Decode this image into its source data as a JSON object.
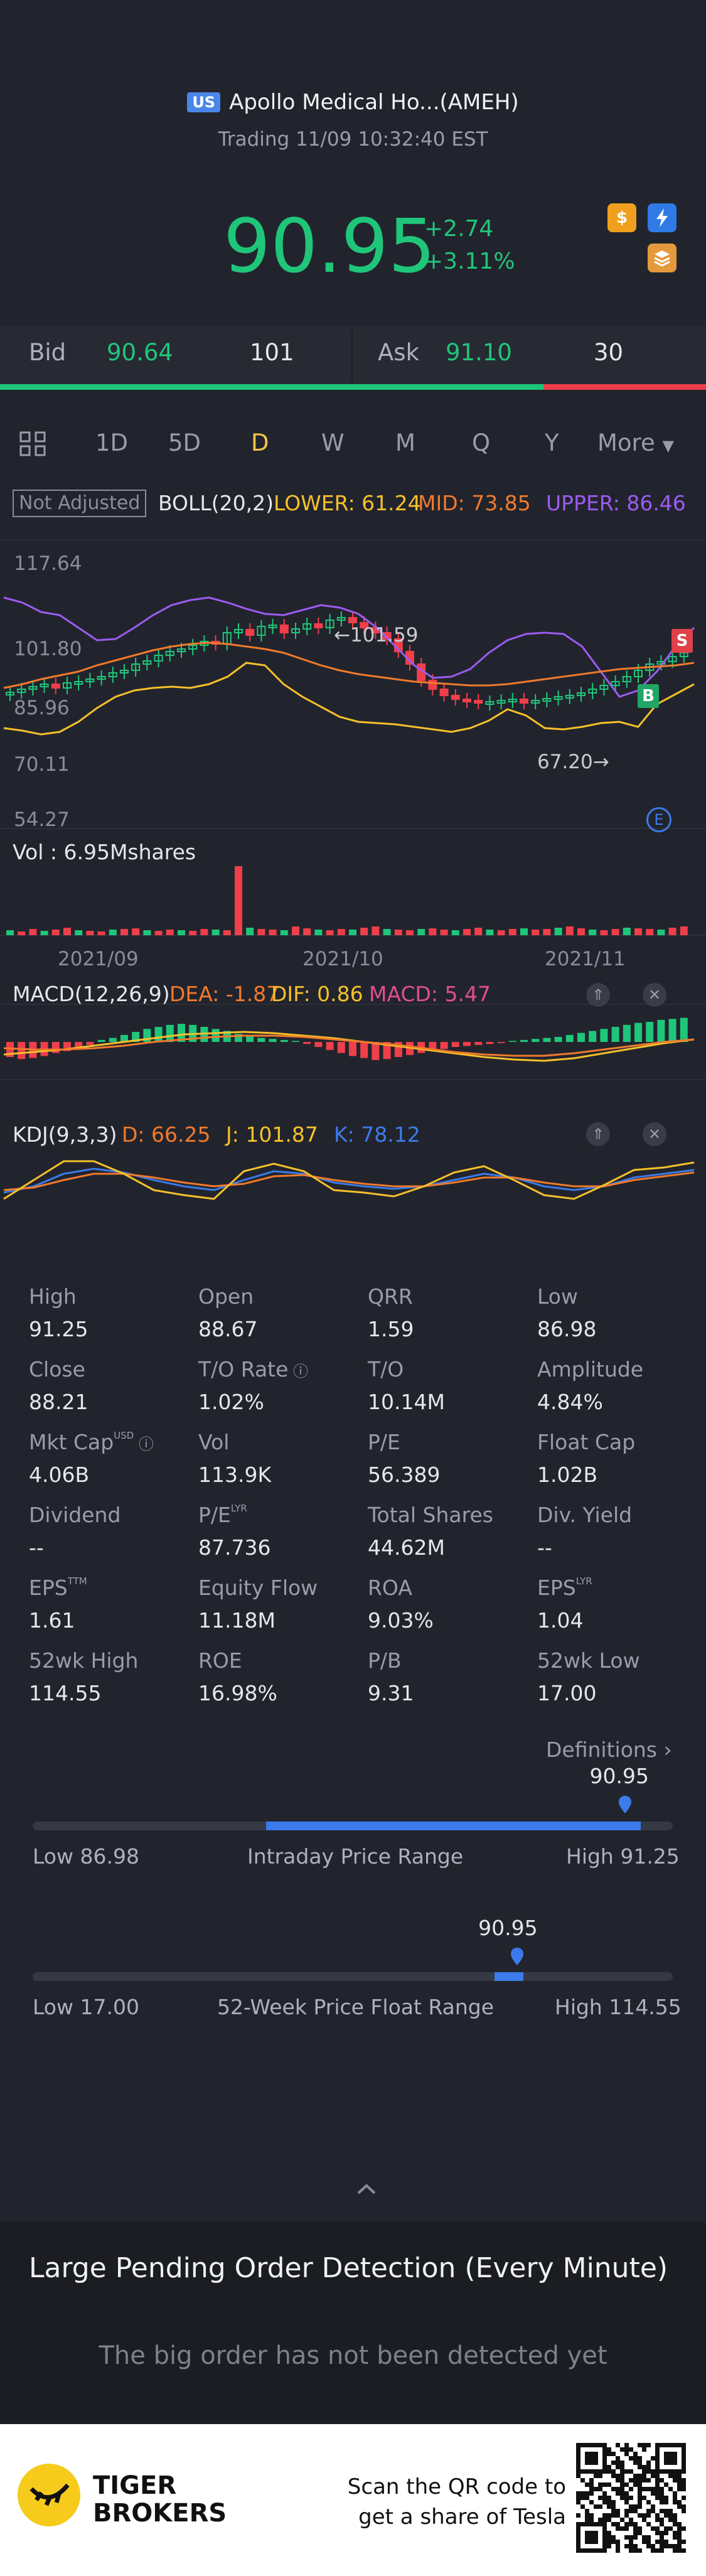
{
  "header": {
    "badge": "US",
    "stock_name": "Apollo Medical Ho...(AMEH)",
    "trading_time": "Trading 11/09 10:32:40 EST",
    "price": "90.95",
    "change": "+2.74",
    "change_pct": "+3.11%"
  },
  "quote": {
    "bid_label": "Bid",
    "bid_price": "90.64",
    "bid_size": "101",
    "ask_label": "Ask",
    "ask_price": "91.10",
    "ask_size": "30",
    "bid_ratio": 0.77
  },
  "tabs": {
    "items": [
      "1D",
      "5D",
      "D",
      "W",
      "M",
      "Q",
      "Y"
    ],
    "more": "More",
    "active": "D"
  },
  "main_chart": {
    "not_adjusted": "Not Adjusted",
    "boll_label": "BOLL(20,2)",
    "lower": "LOWER: 61.24",
    "mid": "MID: 73.85",
    "upper": "UPPER: 86.46",
    "y_ticks": [
      "117.64",
      "101.80",
      "85.96",
      "70.11",
      "54.27"
    ],
    "high_marker": "101.59",
    "low_marker": "67.20",
    "vol_label": "Vol  : 6.95Mshares",
    "x_ticks": [
      "2021/09",
      "2021/10",
      "2021/11"
    ],
    "marker_b": "B",
    "marker_s": "S",
    "marker_e": "E"
  },
  "macd": {
    "label": "MACD(12,26,9)",
    "dea": "DEA: -1.87",
    "dif": "DIF: 0.86",
    "macd": "MACD: 5.47"
  },
  "kdj": {
    "label": "KDJ(9,3,3)",
    "d": "D: 66.25",
    "j": "J: 101.87",
    "k": "K: 78.12"
  },
  "stats": [
    [
      {
        "label": "High",
        "value": "91.25"
      },
      {
        "label": "Open",
        "value": "88.67"
      },
      {
        "label": "QRR",
        "value": "1.59"
      },
      {
        "label": "Low",
        "value": "86.98"
      }
    ],
    [
      {
        "label": "Close",
        "value": "88.21"
      },
      {
        "label": "T/O Rate",
        "value": "1.02%"
      },
      {
        "label": "T/O",
        "value": "10.14M"
      },
      {
        "label": "Amplitude",
        "value": "4.84%"
      }
    ],
    [
      {
        "label": "Mkt Cap",
        "value": "4.06B"
      },
      {
        "label": "Vol",
        "value": "113.9K"
      },
      {
        "label": "P/E",
        "value": "56.389"
      },
      {
        "label": "Float Cap",
        "value": "1.02B"
      }
    ],
    [
      {
        "label": "Dividend",
        "value": "--"
      },
      {
        "label": "P/E",
        "value": "87.736"
      },
      {
        "label": "Total Shares",
        "value": "44.62M"
      },
      {
        "label": "Div. Yield",
        "value": "--"
      }
    ],
    [
      {
        "label": "EPS",
        "value": "1.61"
      },
      {
        "label": "Equity Flow",
        "value": "11.18M"
      },
      {
        "label": "ROA",
        "value": "9.03%"
      },
      {
        "label": "EPS",
        "value": "1.04"
      }
    ],
    [
      {
        "label": "52wk High",
        "value": "114.55"
      },
      {
        "label": "ROE",
        "value": "16.98%"
      },
      {
        "label": "P/B",
        "value": "9.31"
      },
      {
        "label": "52wk Low",
        "value": "17.00"
      }
    ]
  ],
  "superscripts": {
    "usd": "USD",
    "ttm": "TTM",
    "lyr": "LYR"
  },
  "definitions": "Definitions",
  "intraday": {
    "current": "90.95",
    "low": "Low 86.98",
    "title": "Intraday Price Range",
    "high": "High 91.25",
    "fill_start": 0.365,
    "fill_end": 0.95,
    "marker": 0.925
  },
  "week52": {
    "current": "90.95",
    "low": "Low 17.00",
    "title": "52-Week Price Float Range",
    "high": "High 114.55",
    "marker": 0.757
  },
  "lpo": {
    "title": "Large Pending Order Detection (Every Minute)",
    "message": "The big order has not been detected yet"
  },
  "footer": {
    "brand_line1": "TIGER",
    "brand_line2": "BROKERS",
    "scan_line1": "Scan the QR code to",
    "scan_line2": "get a share of Tesla"
  },
  "colors": {
    "up": "#1fc67a",
    "down": "#ef3f4a",
    "accent": "#f5c64a",
    "upper_band": "#9b5cf0",
    "mid_band": "#f07a2c",
    "lower_band": "#f5c12a",
    "blue": "#3b7bea"
  }
}
